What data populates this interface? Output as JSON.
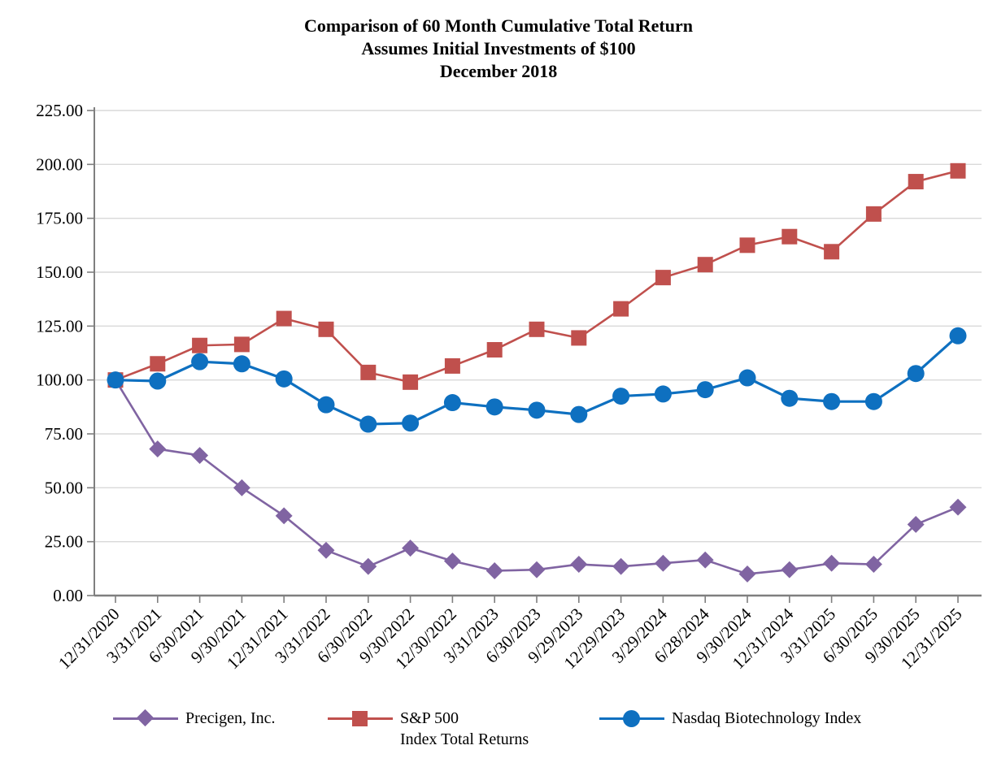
{
  "title": {
    "line1": "Comparison of 60 Month Cumulative Total Return",
    "line2": "Assumes Initial Investments of $100",
    "line3": "December 2018"
  },
  "colors": {
    "background": "#FFFFFF",
    "gridline": "#D9D9D9",
    "axis": "#7F7F7F",
    "text": "#000000"
  },
  "chart_data": {
    "type": "line",
    "title": "Comparison of 60 Month Cumulative Total Return",
    "subtitle": "Assumes Initial Investments of $100",
    "date_note": "December 2018",
    "grid": "horizontal",
    "legend_position": "bottom",
    "ylim": [
      0,
      225
    ],
    "ytick_step": 25,
    "y_tick_labels": [
      "0.00",
      "25.00",
      "50.00",
      "75.00",
      "100.00",
      "125.00",
      "150.00",
      "175.00",
      "200.00",
      "225.00"
    ],
    "categories": [
      "12/31/2020",
      "3/31/2021",
      "6/30/2021",
      "9/30/2021",
      "12/31/2021",
      "3/31/2022",
      "6/30/2022",
      "9/30/2022",
      "12/30/2022",
      "3/31/2023",
      "6/30/2023",
      "9/29/2023",
      "12/29/2023",
      "3/29/2024",
      "6/28/2024",
      "9/30/2024",
      "12/31/2024",
      "3/31/2025",
      "6/30/2025",
      "9/30/2025",
      "12/31/2025"
    ],
    "series": [
      {
        "name": "Precigen, Inc.",
        "marker": "diamond",
        "color": "#8064A2",
        "values": [
          100.0,
          68.0,
          65.0,
          50.0,
          37.0,
          21.0,
          13.5,
          22.0,
          16.0,
          11.5,
          12.0,
          14.5,
          13.5,
          15.0,
          16.5,
          10.0,
          12.0,
          15.0,
          14.5,
          33.0,
          41.0
        ]
      },
      {
        "name": "S&P 500",
        "name_line2": "Index Total Returns",
        "marker": "square",
        "color": "#C0504D",
        "values": [
          100.0,
          107.5,
          116.0,
          116.5,
          128.5,
          123.5,
          103.5,
          99.0,
          106.5,
          114.0,
          123.5,
          119.5,
          133.0,
          147.5,
          153.5,
          162.5,
          166.5,
          159.5,
          177.0,
          192.0,
          197.0
        ]
      },
      {
        "name": "Nasdaq Biotechnology Index",
        "marker": "circle",
        "color": "#0E70C0",
        "values": [
          100.0,
          99.5,
          108.5,
          107.5,
          100.5,
          88.5,
          79.5,
          80.0,
          89.5,
          87.5,
          86.0,
          84.0,
          92.5,
          93.5,
          95.5,
          101.0,
          91.5,
          90.0,
          90.0,
          103.0,
          120.5
        ]
      }
    ]
  }
}
